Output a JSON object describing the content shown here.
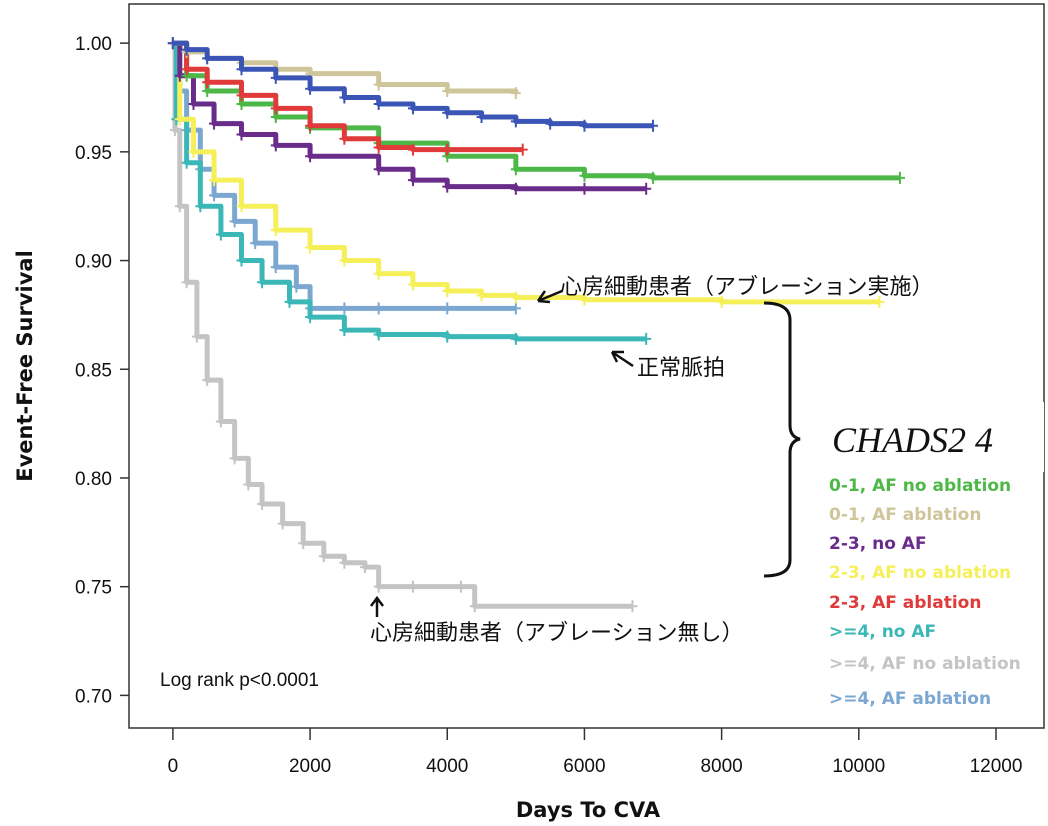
{
  "chart_data": {
    "type": "line",
    "title": "",
    "xlabel": "Days To CVA",
    "ylabel": "Event-Free Survival",
    "xlim": [
      -640,
      12700
    ],
    "ylim": [
      0.685,
      1.018
    ],
    "x_ticks": [
      0,
      2000,
      4000,
      6000,
      8000,
      10000,
      12000
    ],
    "x_tick_labels": [
      "0",
      "2000",
      "4000",
      "6000",
      "8000",
      "10000",
      "12000"
    ],
    "y_ticks": [
      0.7,
      0.75,
      0.8,
      0.85,
      0.9,
      0.95,
      1.0
    ],
    "y_tick_labels": [
      "0.70",
      "0.75",
      "0.80",
      "0.85",
      "0.90",
      "0.95",
      "1.00"
    ],
    "grid": false,
    "legend_position": "bottom-right",
    "series": [
      {
        "name": "0-1, AF no ablation",
        "color": "#4db848",
        "x": [
          0,
          200,
          500,
          1000,
          1500,
          2000,
          3000,
          4000,
          5000,
          6000,
          7000,
          10600
        ],
        "y": [
          1.0,
          0.985,
          0.978,
          0.972,
          0.966,
          0.961,
          0.954,
          0.948,
          0.942,
          0.939,
          0.938,
          0.938
        ]
      },
      {
        "name": "0-1, AF ablation",
        "color": "#cfc59a",
        "x": [
          0,
          200,
          500,
          1000,
          1500,
          2000,
          3000,
          4000,
          5000
        ],
        "y": [
          1.0,
          0.996,
          0.993,
          0.991,
          0.988,
          0.986,
          0.981,
          0.978,
          0.977
        ]
      },
      {
        "name": "2-3, no AF",
        "color": "#6a2c8a",
        "x": [
          0,
          100,
          300,
          600,
          1000,
          1500,
          2000,
          3000,
          3500,
          4000,
          5000,
          6000,
          6900
        ],
        "y": [
          1.0,
          0.985,
          0.972,
          0.963,
          0.958,
          0.953,
          0.948,
          0.942,
          0.937,
          0.934,
          0.933,
          0.933,
          0.933
        ]
      },
      {
        "name": "2-3, AF no ablation",
        "color": "#f5f05a",
        "x": [
          0,
          100,
          300,
          600,
          1000,
          1500,
          2000,
          2500,
          3000,
          3500,
          4000,
          4500,
          5000,
          6000,
          8000,
          10300
        ],
        "y": [
          1.0,
          0.965,
          0.95,
          0.937,
          0.925,
          0.914,
          0.906,
          0.9,
          0.894,
          0.889,
          0.886,
          0.884,
          0.883,
          0.882,
          0.881,
          0.881
        ]
      },
      {
        "name": "2-3, AF ablation",
        "color": "#e03a3a",
        "x": [
          0,
          200,
          500,
          1000,
          1500,
          2000,
          2500,
          3000,
          3500,
          4000,
          5100
        ],
        "y": [
          1.0,
          0.988,
          0.982,
          0.976,
          0.97,
          0.962,
          0.956,
          0.952,
          0.951,
          0.951,
          0.951
        ]
      },
      {
        "name": ">=4, no AF",
        "color": "#3cb7b7",
        "x": [
          0,
          50,
          200,
          400,
          700,
          1000,
          1300,
          1700,
          2000,
          2500,
          3000,
          4000,
          5000,
          6900
        ],
        "y": [
          1.0,
          0.965,
          0.945,
          0.925,
          0.912,
          0.9,
          0.89,
          0.881,
          0.874,
          0.868,
          0.866,
          0.865,
          0.864,
          0.864
        ]
      },
      {
        "name": ">=4, AF no ablation",
        "color": "#c4c4c4",
        "x": [
          0,
          30,
          100,
          200,
          350,
          500,
          700,
          900,
          1100,
          1300,
          1600,
          1900,
          2200,
          2500,
          2800,
          3000,
          3500,
          4200,
          4400,
          6700
        ],
        "y": [
          1.0,
          0.96,
          0.925,
          0.89,
          0.865,
          0.845,
          0.826,
          0.809,
          0.797,
          0.788,
          0.779,
          0.77,
          0.764,
          0.761,
          0.759,
          0.75,
          0.75,
          0.75,
          0.741,
          0.741
        ]
      },
      {
        "name": ">=4, AF ablation",
        "color": "#7ba7d1",
        "x": [
          0,
          100,
          200,
          400,
          600,
          900,
          1200,
          1500,
          1800,
          2000,
          2500,
          3000,
          4000,
          5000
        ],
        "y": [
          1.0,
          0.978,
          0.96,
          0.942,
          0.93,
          0.918,
          0.908,
          0.897,
          0.888,
          0.878,
          0.878,
          0.878,
          0.878,
          0.878
        ]
      },
      {
        "name": "",
        "color": "#3a55b5",
        "x": [
          0,
          200,
          500,
          1000,
          1500,
          2000,
          2500,
          3000,
          3500,
          4000,
          4500,
          5000,
          5500,
          6000,
          7000
        ],
        "y": [
          1.0,
          0.997,
          0.993,
          0.988,
          0.984,
          0.979,
          0.975,
          0.972,
          0.97,
          0.968,
          0.966,
          0.964,
          0.963,
          0.962,
          0.962
        ]
      }
    ]
  },
  "annotations": {
    "note": "Log rank p<0.0001",
    "chads": "CHADS2 4",
    "ablation_label": "心房細動患者（アブレーション実施）",
    "sinus_label": "正常脈拍",
    "no_ablation_label": "心房細動患者（アブレーション無し）"
  }
}
